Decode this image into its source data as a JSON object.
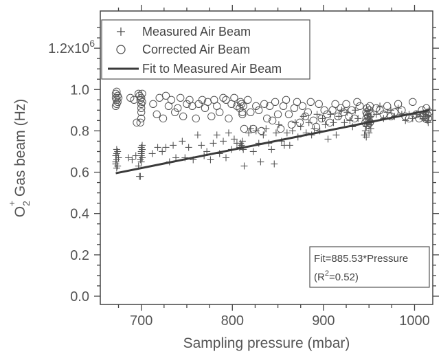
{
  "chart_data": {
    "type": "scatter",
    "xlabel": "Sampling pressure (mbar)",
    "ylabel_main": "O",
    "ylabel_sub": "2",
    "ylabel_sup": "+",
    "ylabel_rest": " Gas beam (Hz)",
    "xlim": [
      655,
      1020
    ],
    "ylim": [
      -0.04,
      1.38
    ],
    "x_ticks": [
      700,
      800,
      900,
      1000
    ],
    "x_tick_labels": [
      "700",
      "800",
      "900",
      "1000"
    ],
    "y_ticks": [
      0.0,
      0.2,
      0.4,
      0.6,
      0.8,
      1.0
    ],
    "y_tick_labels": [
      "0.0",
      "0.2",
      "0.4",
      "0.6",
      "0.8",
      "1.0"
    ],
    "y_extra_tick_value": 1.2,
    "y_extra_tick_base": "1.2x10",
    "y_extra_tick_exp": "6",
    "grid": false,
    "legend_position": "top-left",
    "colors": {
      "marker": "#555555",
      "fit": "#3a3a3a",
      "axis": "#444444"
    },
    "series": [
      {
        "name": "Measured Air Beam",
        "marker": "plus",
        "points": [
          [
            672,
            0.65
          ],
          [
            672,
            0.64
          ],
          [
            673,
            0.66
          ],
          [
            673,
            0.69
          ],
          [
            674,
            0.63
          ],
          [
            672,
            0.68
          ],
          [
            674,
            0.7
          ],
          [
            673,
            0.62
          ],
          [
            675,
            0.67
          ],
          [
            673,
            0.71
          ],
          [
            686,
            0.67
          ],
          [
            690,
            0.66
          ],
          [
            694,
            0.68
          ],
          [
            697,
            0.63
          ],
          [
            698,
            0.58
          ],
          [
            699,
            0.58
          ],
          [
            700,
            0.69
          ],
          [
            700,
            0.68
          ],
          [
            700,
            0.7
          ],
          [
            701,
            0.67
          ],
          [
            701,
            0.71
          ],
          [
            700,
            0.72
          ],
          [
            700,
            0.65
          ],
          [
            699,
            0.66
          ],
          [
            701,
            0.73
          ],
          [
            712,
            0.69
          ],
          [
            718,
            0.72
          ],
          [
            723,
            0.7
          ],
          [
            727,
            0.72
          ],
          [
            731,
            0.65
          ],
          [
            735,
            0.73
          ],
          [
            738,
            0.67
          ],
          [
            745,
            0.75
          ],
          [
            748,
            0.67
          ],
          [
            752,
            0.72
          ],
          [
            757,
            0.66
          ],
          [
            762,
            0.78
          ],
          [
            766,
            0.73
          ],
          [
            769,
            0.68
          ],
          [
            772,
            0.7
          ],
          [
            776,
            0.66
          ],
          [
            779,
            0.74
          ],
          [
            783,
            0.78
          ],
          [
            786,
            0.69
          ],
          [
            790,
            0.75
          ],
          [
            793,
            0.67
          ],
          [
            796,
            0.79
          ],
          [
            799,
            0.71
          ],
          [
            802,
            0.76
          ],
          [
            805,
            0.74
          ],
          [
            808,
            0.72
          ],
          [
            809,
            0.74
          ],
          [
            810,
            0.73
          ],
          [
            811,
            0.75
          ],
          [
            812,
            0.71
          ],
          [
            811,
            0.72
          ],
          [
            813,
            0.63
          ],
          [
            818,
            0.79
          ],
          [
            820,
            0.81
          ],
          [
            823,
            0.7
          ],
          [
            826,
            0.8
          ],
          [
            829,
            0.74
          ],
          [
            831,
            0.65
          ],
          [
            834,
            0.78
          ],
          [
            837,
            0.81
          ],
          [
            840,
            0.74
          ],
          [
            843,
            0.71
          ],
          [
            846,
            0.64
          ],
          [
            848,
            0.79
          ],
          [
            851,
            0.83
          ],
          [
            854,
            0.75
          ],
          [
            857,
            0.73
          ],
          [
            860,
            0.79
          ],
          [
            863,
            0.73
          ],
          [
            866,
            0.8
          ],
          [
            869,
            0.84
          ],
          [
            872,
            0.77
          ],
          [
            875,
            0.82
          ],
          [
            878,
            0.87
          ],
          [
            881,
            0.79
          ],
          [
            884,
            0.84
          ],
          [
            887,
            0.78
          ],
          [
            890,
            0.81
          ],
          [
            893,
            0.88
          ],
          [
            896,
            0.8
          ],
          [
            899,
            0.86
          ],
          [
            902,
            0.83
          ],
          [
            905,
            0.76
          ],
          [
            908,
            0.88
          ],
          [
            911,
            0.84
          ],
          [
            914,
            0.78
          ],
          [
            917,
            0.87
          ],
          [
            920,
            0.9
          ],
          [
            923,
            0.84
          ],
          [
            926,
            0.89
          ],
          [
            929,
            0.85
          ],
          [
            932,
            0.82
          ],
          [
            935,
            0.9
          ],
          [
            938,
            0.86
          ],
          [
            945,
            0.78
          ],
          [
            946,
            0.8
          ],
          [
            947,
            0.82
          ],
          [
            948,
            0.84
          ],
          [
            948,
            0.86
          ],
          [
            949,
            0.88
          ],
          [
            949,
            0.9
          ],
          [
            950,
            0.83
          ],
          [
            950,
            0.79
          ],
          [
            951,
            0.85
          ],
          [
            951,
            0.87
          ],
          [
            952,
            0.81
          ],
          [
            947,
            0.77
          ],
          [
            952,
            0.84
          ],
          [
            958,
            0.88
          ],
          [
            962,
            0.92
          ],
          [
            966,
            0.86
          ],
          [
            970,
            0.89
          ],
          [
            974,
            0.9
          ],
          [
            978,
            0.87
          ],
          [
            982,
            0.91
          ],
          [
            986,
            0.88
          ],
          [
            990,
            0.85
          ],
          [
            994,
            0.88
          ],
          [
            998,
            0.86
          ],
          [
            1002,
            0.88
          ],
          [
            1006,
            0.87
          ],
          [
            1010,
            0.86
          ],
          [
            1012,
            0.88
          ],
          [
            1013,
            0.89
          ],
          [
            1014,
            0.85
          ],
          [
            1015,
            0.87
          ],
          [
            1015,
            0.84
          ],
          [
            1016,
            0.9
          ]
        ]
      },
      {
        "name": "Corrected Air Beam",
        "marker": "circle",
        "points": [
          [
            672,
            0.98
          ],
          [
            672,
            0.96
          ],
          [
            673,
            0.95
          ],
          [
            673,
            0.93
          ],
          [
            674,
            0.97
          ],
          [
            672,
            0.92
          ],
          [
            674,
            0.94
          ],
          [
            673,
            0.99
          ],
          [
            675,
            0.96
          ],
          [
            688,
            0.96
          ],
          [
            692,
            0.95
          ],
          [
            695,
            0.84
          ],
          [
            697,
            0.98
          ],
          [
            698,
            0.97
          ],
          [
            699,
            0.95
          ],
          [
            700,
            0.93
          ],
          [
            700,
            0.96
          ],
          [
            701,
            0.98
          ],
          [
            700,
            0.91
          ],
          [
            701,
            0.94
          ],
          [
            700,
            0.89
          ],
          [
            700,
            0.86
          ],
          [
            699,
            0.84
          ],
          [
            713,
            0.93
          ],
          [
            717,
            0.88
          ],
          [
            720,
            0.96
          ],
          [
            724,
            0.86
          ],
          [
            727,
            0.97
          ],
          [
            730,
            0.92
          ],
          [
            733,
            0.95
          ],
          [
            737,
            0.89
          ],
          [
            740,
            0.91
          ],
          [
            743,
            0.96
          ],
          [
            746,
            0.87
          ],
          [
            750,
            0.93
          ],
          [
            753,
            0.95
          ],
          [
            756,
            0.92
          ],
          [
            760,
            0.86
          ],
          [
            763,
            0.93
          ],
          [
            767,
            0.95
          ],
          [
            770,
            0.91
          ],
          [
            773,
            0.94
          ],
          [
            777,
            0.87
          ],
          [
            780,
            0.95
          ],
          [
            783,
            0.92
          ],
          [
            786,
            0.89
          ],
          [
            790,
            0.96
          ],
          [
            793,
            0.95
          ],
          [
            796,
            0.86
          ],
          [
            799,
            0.93
          ],
          [
            802,
            0.96
          ],
          [
            805,
            0.92
          ],
          [
            808,
            0.91
          ],
          [
            809,
            0.94
          ],
          [
            810,
            0.93
          ],
          [
            811,
            0.89
          ],
          [
            812,
            0.92
          ],
          [
            811,
            0.88
          ],
          [
            813,
            0.81
          ],
          [
            817,
            0.95
          ],
          [
            820,
            0.89
          ],
          [
            823,
            0.81
          ],
          [
            826,
            0.92
          ],
          [
            829,
            0.9
          ],
          [
            832,
            0.8
          ],
          [
            835,
            0.93
          ],
          [
            838,
            0.86
          ],
          [
            841,
            0.92
          ],
          [
            844,
            0.85
          ],
          [
            847,
            0.94
          ],
          [
            850,
            0.88
          ],
          [
            853,
            0.81
          ],
          [
            856,
            0.92
          ],
          [
            859,
            0.95
          ],
          [
            862,
            0.88
          ],
          [
            865,
            0.83
          ],
          [
            868,
            0.91
          ],
          [
            871,
            0.94
          ],
          [
            874,
            0.84
          ],
          [
            877,
            0.92
          ],
          [
            880,
            0.87
          ],
          [
            883,
            0.89
          ],
          [
            886,
            0.94
          ],
          [
            889,
            0.85
          ],
          [
            892,
            0.82
          ],
          [
            895,
            0.93
          ],
          [
            898,
            0.86
          ],
          [
            901,
            0.9
          ],
          [
            904,
            0.88
          ],
          [
            907,
            0.84
          ],
          [
            910,
            0.9
          ],
          [
            913,
            0.93
          ],
          [
            916,
            0.87
          ],
          [
            919,
            0.91
          ],
          [
            922,
            0.89
          ],
          [
            925,
            0.93
          ],
          [
            928,
            0.87
          ],
          [
            931,
            0.9
          ],
          [
            934,
            0.86
          ],
          [
            937,
            0.94
          ],
          [
            940,
            0.92
          ],
          [
            946,
            0.84
          ],
          [
            947,
            0.86
          ],
          [
            947,
            0.89
          ],
          [
            948,
            0.88
          ],
          [
            948,
            0.91
          ],
          [
            949,
            0.87
          ],
          [
            950,
            0.85
          ],
          [
            950,
            0.9
          ],
          [
            951,
            0.92
          ],
          [
            951,
            0.84
          ],
          [
            952,
            0.88
          ],
          [
            949,
            0.83
          ],
          [
            958,
            0.91
          ],
          [
            962,
            0.9
          ],
          [
            966,
            0.88
          ],
          [
            970,
            0.92
          ],
          [
            974,
            0.87
          ],
          [
            978,
            0.89
          ],
          [
            982,
            0.93
          ],
          [
            986,
            0.9
          ],
          [
            990,
            0.87
          ],
          [
            994,
            0.86
          ],
          [
            998,
            0.94
          ],
          [
            1002,
            0.88
          ],
          [
            1005,
            0.86
          ],
          [
            1008,
            0.9
          ],
          [
            1010,
            0.87
          ],
          [
            1012,
            0.86
          ],
          [
            1013,
            0.91
          ],
          [
            1014,
            0.88
          ],
          [
            1015,
            0.86
          ],
          [
            1016,
            0.89
          ]
        ]
      },
      {
        "name": "Fit to Measured Air Beam",
        "marker": "line",
        "points": [
          [
            672,
            0.595
          ],
          [
            1016,
            0.9
          ]
        ]
      }
    ],
    "annotation_line1": "Fit=885.53*Pressure",
    "annotation_line2_prefix": "(R",
    "annotation_line2_sup": "2",
    "annotation_line2_suffix": "=0.52)"
  }
}
